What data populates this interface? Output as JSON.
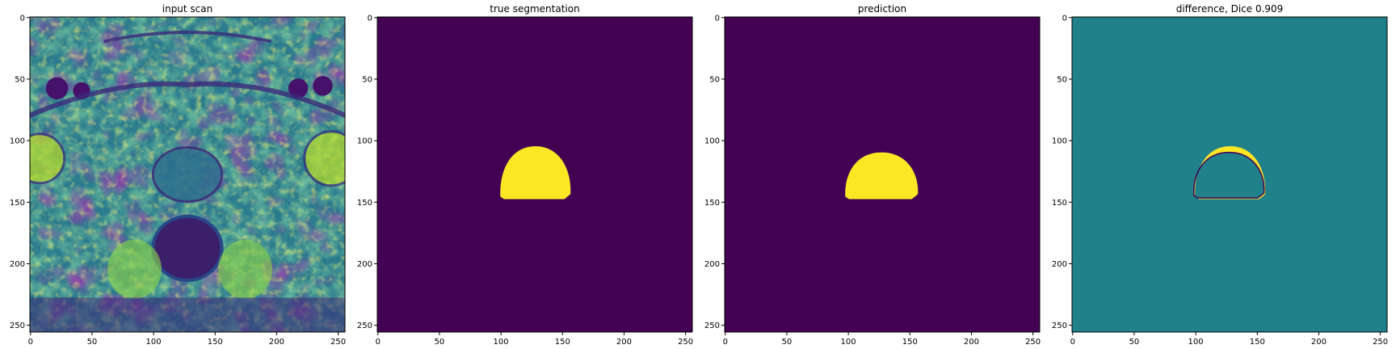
{
  "chart_data": [
    {
      "type": "heatmap",
      "title": "input scan",
      "image": "grayscale MRI pelvic scan rendered with viridis colormap",
      "colormap": "viridis",
      "xlim": [
        0,
        256
      ],
      "ylim": [
        256,
        0
      ],
      "xticks": [
        0,
        50,
        100,
        150,
        200,
        250
      ],
      "yticks": [
        0,
        50,
        100,
        150,
        200,
        250
      ]
    },
    {
      "type": "heatmap",
      "title": "true segmentation",
      "colormap": "viridis",
      "background_color": "#440154",
      "mask_color": "#fde725",
      "mask_extent": {
        "x": [
          100,
          157
        ],
        "y": [
          105,
          148
        ]
      },
      "xlim": [
        0,
        256
      ],
      "ylim": [
        256,
        0
      ],
      "xticks": [
        0,
        50,
        100,
        150,
        200,
        250
      ],
      "yticks": [
        0,
        50,
        100,
        150,
        200,
        250
      ]
    },
    {
      "type": "heatmap",
      "title": "prediction",
      "colormap": "viridis",
      "background_color": "#440154",
      "mask_color": "#fde725",
      "mask_extent": {
        "x": [
          98,
          157
        ],
        "y": [
          110,
          148
        ]
      },
      "xlim": [
        0,
        256
      ],
      "ylim": [
        256,
        0
      ],
      "xticks": [
        0,
        50,
        100,
        150,
        200,
        250
      ],
      "yticks": [
        0,
        50,
        100,
        150,
        200,
        250
      ]
    },
    {
      "type": "heatmap",
      "title": "difference, Dice 0.909",
      "dice": 0.909,
      "colormap": "viridis",
      "background_color": "#21818b",
      "positive_color": "#fde725",
      "negative_color": "#440154",
      "xlim": [
        0,
        256
      ],
      "ylim": [
        256,
        0
      ],
      "xticks": [
        0,
        50,
        100,
        150,
        200,
        250
      ],
      "yticks": [
        0,
        50,
        100,
        150,
        200,
        250
      ]
    }
  ]
}
